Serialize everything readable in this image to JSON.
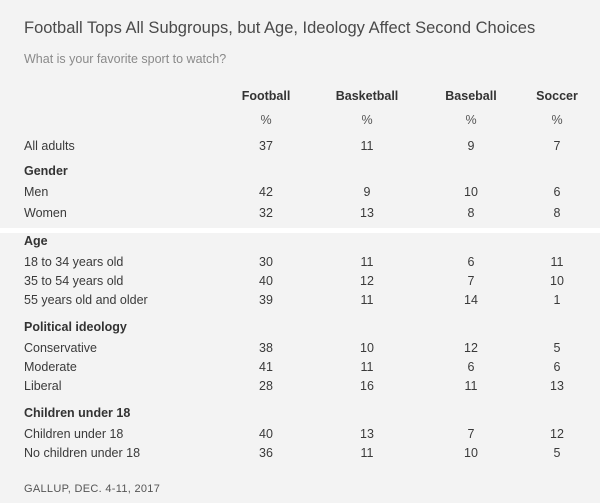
{
  "title": "Football Tops All Subgroups, but Age, Ideology Affect Second Choices",
  "subtitle": "What is your favorite sport to watch?",
  "columns": [
    "Football",
    "Basketball",
    "Baseball",
    "Soccer"
  ],
  "units": [
    "%",
    "%",
    "%",
    "%"
  ],
  "rows": [
    {
      "label": "All adults",
      "values": [
        "37",
        "11",
        "9",
        "7"
      ]
    },
    {
      "group": "Gender"
    },
    {
      "label": "Men",
      "values": [
        "42",
        "9",
        "10",
        "6"
      ]
    },
    {
      "label": "Women",
      "values": [
        "32",
        "13",
        "8",
        "8"
      ]
    },
    {
      "group": "Age"
    },
    {
      "label": "18 to 34 years old",
      "values": [
        "30",
        "11",
        "6",
        "11"
      ]
    },
    {
      "label": "35 to 54 years old",
      "values": [
        "40",
        "12",
        "7",
        "10"
      ]
    },
    {
      "label": "55 years old and older",
      "values": [
        "39",
        "11",
        "14",
        "1"
      ]
    },
    {
      "group": "Political ideology"
    },
    {
      "label": "Conservative",
      "values": [
        "38",
        "10",
        "12",
        "5"
      ]
    },
    {
      "label": "Moderate",
      "values": [
        "41",
        "11",
        "6",
        "6"
      ]
    },
    {
      "label": "Liberal",
      "values": [
        "28",
        "16",
        "11",
        "13"
      ]
    },
    {
      "group": "Children under 18"
    },
    {
      "label": "Children under 18",
      "values": [
        "40",
        "13",
        "7",
        "12"
      ]
    },
    {
      "label": "No children under 18",
      "values": [
        "36",
        "11",
        "10",
        "5"
      ]
    }
  ],
  "source": "GALLUP, DEC. 4-11, 2017"
}
